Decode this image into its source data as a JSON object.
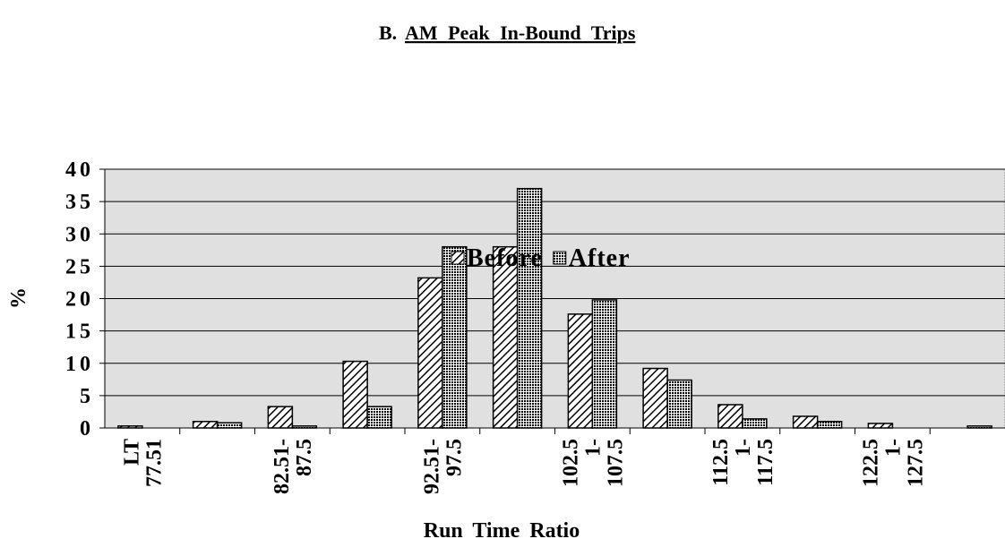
{
  "chart_data": {
    "type": "bar",
    "title_number": "B.",
    "title": "AM Peak In-Bound Trips",
    "x_label": "Run Time Ratio",
    "y_label": "%",
    "categories": [
      "LT 77.51",
      null,
      "82.51- 87.5",
      null,
      "92.51- 97.5",
      null,
      "102.5 1- 107.5",
      null,
      "112.5 1- 117.5",
      null,
      "122.5 1- 127.5",
      null
    ],
    "series": [
      {
        "name": "Before",
        "color": "#000000",
        "values": [
          0.3,
          1,
          3.3,
          10.3,
          23.2,
          28,
          17.6,
          9.2,
          3.6,
          1.8,
          0.7,
          0
        ]
      },
      {
        "name": "After",
        "color": "#000000",
        "values": [
          0,
          0.8,
          0.3,
          3.3,
          28,
          37,
          19.8,
          7.4,
          1.4,
          1,
          0,
          0.3
        ]
      }
    ],
    "ylim": [
      0,
      40
    ],
    "yticks": [
      0,
      5,
      10,
      15,
      20,
      25,
      30,
      35,
      40
    ],
    "grid": true,
    "legend": "top"
  }
}
